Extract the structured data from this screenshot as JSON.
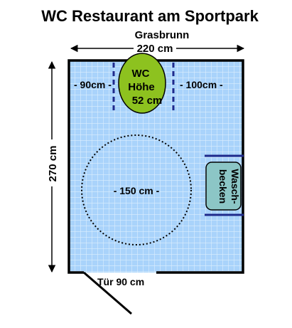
{
  "title": "WC Restaurant am Sportpark",
  "subtitle": "Grasbrunn",
  "dimensions": {
    "width": "220 cm",
    "height": "270 cm",
    "left_clearance": "- 90cm -",
    "right_clearance": "- 100cm -",
    "turning_circle": "- 150 cm -",
    "door": "Tür 90 cm"
  },
  "toilet": {
    "line1": "WC",
    "line2": "Höhe",
    "line3": "52 cm"
  },
  "sink": {
    "line1": "Wasch-",
    "line2": "becken"
  },
  "colors": {
    "floor": "#a9d3fb",
    "grid": "#dceefe",
    "wall": "#000000",
    "toilet": "#8dc21f",
    "sink": "#8cc6c6",
    "dashes": "#1f2a8c"
  }
}
